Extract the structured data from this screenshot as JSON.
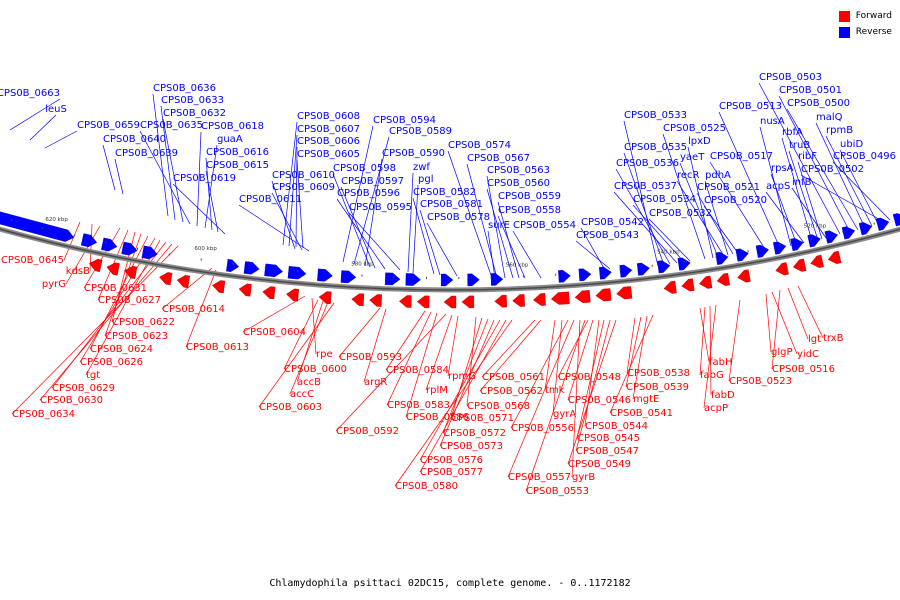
{
  "legend": {
    "forward_label": "Forward",
    "reverse_label": "Reverse",
    "forward_color": "#ff0000",
    "reverse_color": "#0000ff"
  },
  "caption": "Chlamydophila psittaci 02DC15, complete genome. - 0..1172182",
  "ruler": {
    "ticks": [
      "680 kbp",
      "660 kbp",
      "640 kbp",
      "620 kbp",
      "600 kbp",
      "580 kbp",
      "560 kbp",
      "540 kbp",
      "520 kbp"
    ]
  },
  "reverse_labels": [
    "CPS0B_0663",
    "leuS",
    "CPS0B_0659",
    "CPS0B_0640",
    "CPS0B_0639",
    "CPS0B_0636",
    "CPS0B_0633",
    "CPS0B_0632",
    "CPS0B_0635",
    "CPS0B_0618",
    "guaA",
    "CPS0B_0616",
    "CPS0B_0615",
    "CPS0B_0619",
    "CPS0B_0608",
    "CPS0B_0607",
    "CPS0B_0606",
    "CPS0B_0605",
    "CPS0B_0610",
    "CPS0B_0609",
    "CPS0B_0611",
    "CPS0B_0594",
    "CPS0B_0589",
    "CPS0B_0590",
    "CPS0B_0598",
    "CPS0B_0597",
    "CPS0B_0596",
    "CPS0B_0595",
    "zwf",
    "pgl",
    "CPS0B_0582",
    "CPS0B_0581",
    "CPS0B_0578",
    "CPS0B_0574",
    "CPS0B_0567",
    "CPS0B_0563",
    "CPS0B_0560",
    "CPS0B_0559",
    "CPS0B_0558",
    "surE",
    "CPS0B_0554",
    "CPS0B_0542",
    "CPS0B_0543",
    "CPS0B_0533",
    "CPS0B_0535",
    "CPS0B_0536",
    "CPS0B_0537",
    "CPS0B_0534",
    "CPS0B_0532",
    "CPS0B_0525",
    "lpxD",
    "yaeT",
    "recR",
    "pdhA",
    "CPS0B_0521",
    "CPS0B_0520",
    "CPS0B_0517",
    "CPS0B_0513",
    "nusA",
    "rpsA",
    "acpS",
    "rbfA",
    "truB",
    "ribF",
    "infB",
    "CPS0B_0503",
    "CPS0B_0501",
    "CPS0B_0500",
    "malQ",
    "rpmB",
    "ubiD",
    "CPS0B_0502",
    "CPS0B_0496"
  ],
  "forward_labels": [
    "CPS0B_0645",
    "kdsB",
    "pyrG",
    "CPS0B_0631",
    "CPS0B_0627",
    "CPS0B_0622",
    "CPS0B_0623",
    "CPS0B_0624",
    "CPS0B_0626",
    "tgt",
    "CPS0B_0629",
    "CPS0B_0630",
    "CPS0B_0634",
    "CPS0B_0614",
    "CPS0B_0613",
    "CPS0B_0604",
    "rpe",
    "CPS0B_0600",
    "accB",
    "accC",
    "CPS0B_0603",
    "CPS0B_0593",
    "argR",
    "CPS0B_0584",
    "CPS0B_0583",
    "CPS0B_0586",
    "CPS0B_0592",
    "rplM",
    "rpmG",
    "CPS0B_0568",
    "CPS0B_0571",
    "CPS0B_0572",
    "CPS0B_0573",
    "CPS0B_0576",
    "CPS0B_0577",
    "CPS0B_0580",
    "CPS0B_0561",
    "CPS0B_0562",
    "tmk",
    "gyrA",
    "CPS0B_0556",
    "CPS0B_0557",
    "gyrB",
    "CPS0B_0553",
    "CPS0B_0548",
    "CPS0B_0546",
    "CPS0B_0544",
    "CPS0B_0545",
    "CPS0B_0547",
    "CPS0B_0549",
    "CPS0B_0538",
    "CPS0B_0539",
    "mgtE",
    "CPS0B_0541",
    "fabH",
    "fabG",
    "fabD",
    "acpP",
    "CPS0B_0523",
    "glgP",
    "yidC",
    "lgt",
    "trxB",
    "CPS0B_0516"
  ]
}
